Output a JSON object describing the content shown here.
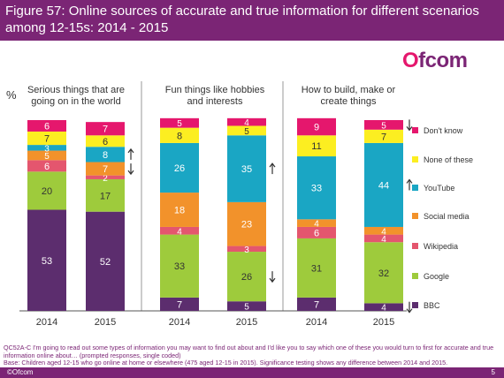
{
  "header": {
    "title": "Figure 57: Online sources of accurate and true information for different scenarios among 12-15s: 2014 - 2015"
  },
  "logo": {
    "text": "Ofcom"
  },
  "footer": {
    "question": "QC52A-C I'm going to read out some types of information you may want to find out about and I'd like you to say which one of these you would turn to first for accurate and true information online about… (prompted responses, single coded)",
    "base": "Base: Children aged 12-15 who go online at home or elsewhere (475 aged 12-15 in 2015). Significance testing shows any difference between 2014 and 2015.",
    "copyright": "©Ofcom",
    "page": "5"
  },
  "chart_data": {
    "type": "bar",
    "stacked": true,
    "unit_label": "%",
    "ylim": [
      0,
      100
    ],
    "groups": [
      {
        "title": "Serious things that are going on in the world",
        "years": [
          "2014",
          "2015"
        ]
      },
      {
        "title": "Fun things like hobbies and interests",
        "years": [
          "2014",
          "2015"
        ]
      },
      {
        "title": "How to build, make or create things",
        "years": [
          "2014",
          "2015"
        ]
      }
    ],
    "series": [
      {
        "name": "BBC",
        "color": "#5c2d6e",
        "values": [
          53,
          52,
          7,
          5,
          7,
          4
        ]
      },
      {
        "name": "Google",
        "color": "#9ecb3c",
        "values": [
          20,
          17,
          33,
          26,
          31,
          32
        ]
      },
      {
        "name": "Wikipedia",
        "color": "#e4566e",
        "values": [
          6,
          2,
          4,
          3,
          6,
          4
        ]
      },
      {
        "name": "Social media",
        "color": "#f2922b",
        "values": [
          5,
          7,
          18,
          23,
          4,
          4
        ]
      },
      {
        "name": "YouTube",
        "color": "#1aa6c4",
        "values": [
          3,
          8,
          26,
          35,
          33,
          44
        ]
      },
      {
        "name": "None of these",
        "color": "#fcee21",
        "values": [
          7,
          6,
          8,
          5,
          11,
          7
        ]
      },
      {
        "name": "Don't know",
        "color": "#e5176d",
        "values": [
          6,
          7,
          5,
          4,
          9,
          5
        ]
      }
    ],
    "significance_arrows": [
      {
        "bar": 1,
        "series": "YouTube",
        "direction": "up"
      },
      {
        "bar": 1,
        "series": "Social media",
        "direction": "down"
      },
      {
        "bar": 3,
        "series": "YouTube",
        "direction": "up"
      },
      {
        "bar": 3,
        "series": "Google",
        "direction": "down"
      },
      {
        "bar": 5,
        "series": "Don't know",
        "direction": "down"
      },
      {
        "bar": 5,
        "series": "YouTube",
        "direction": "up"
      },
      {
        "bar": 5,
        "series": "BBC",
        "direction": "down"
      }
    ],
    "legend_position": "right"
  }
}
